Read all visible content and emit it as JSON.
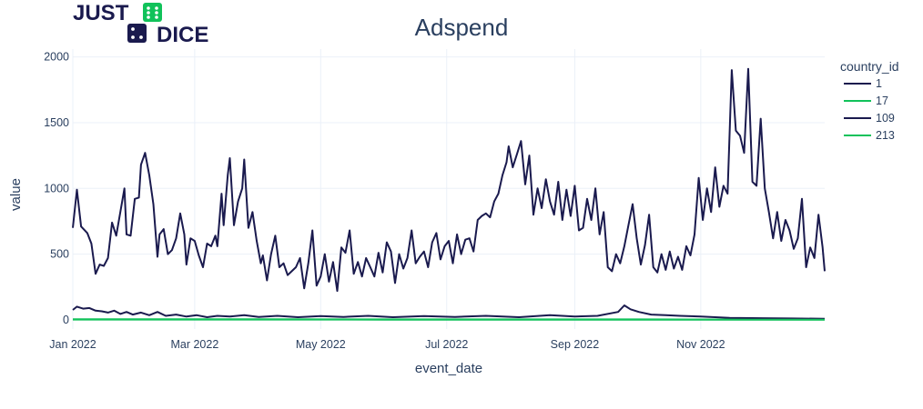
{
  "logo": {
    "line1": "JUST",
    "line2": "DICE",
    "colors": {
      "navy": "#1a1a4e",
      "green": "#11c25a"
    }
  },
  "chart_data": {
    "type": "line",
    "title": "Adspend",
    "xlabel": "event_date",
    "ylabel": "value",
    "x_range": [
      "2022-01-01",
      "2022-12-31"
    ],
    "ylim": [
      -70,
      2060
    ],
    "yticks": [
      0,
      500,
      1000,
      1500,
      2000
    ],
    "xticks": [
      {
        "date": "2022-01-01",
        "label": "Jan 2022"
      },
      {
        "date": "2022-03-01",
        "label": "Mar 2022"
      },
      {
        "date": "2022-05-01",
        "label": "May 2022"
      },
      {
        "date": "2022-07-01",
        "label": "Jul 2022"
      },
      {
        "date": "2022-09-01",
        "label": "Sep 2022"
      },
      {
        "date": "2022-11-01",
        "label": "Nov 2022"
      }
    ],
    "grid": true,
    "legend": {
      "title": "country_id",
      "placement": "top-right"
    },
    "series": [
      {
        "name": "1",
        "color": "#1a1a4e",
        "points": [
          [
            "2022-01-01",
            700
          ],
          [
            "2022-01-03",
            990
          ],
          [
            "2022-01-05",
            710
          ],
          [
            "2022-01-08",
            660
          ],
          [
            "2022-01-10",
            580
          ],
          [
            "2022-01-12",
            350
          ],
          [
            "2022-01-14",
            420
          ],
          [
            "2022-01-16",
            410
          ],
          [
            "2022-01-18",
            470
          ],
          [
            "2022-01-20",
            740
          ],
          [
            "2022-01-22",
            640
          ],
          [
            "2022-01-24",
            820
          ],
          [
            "2022-01-26",
            1000
          ],
          [
            "2022-01-27",
            650
          ],
          [
            "2022-01-29",
            640
          ],
          [
            "2022-01-31",
            920
          ],
          [
            "2022-02-02",
            930
          ],
          [
            "2022-02-03",
            1180
          ],
          [
            "2022-02-05",
            1270
          ],
          [
            "2022-02-07",
            1100
          ],
          [
            "2022-02-09",
            880
          ],
          [
            "2022-02-11",
            480
          ],
          [
            "2022-02-12",
            650
          ],
          [
            "2022-02-14",
            690
          ],
          [
            "2022-02-16",
            500
          ],
          [
            "2022-02-18",
            530
          ],
          [
            "2022-02-20",
            620
          ],
          [
            "2022-02-22",
            810
          ],
          [
            "2022-02-24",
            650
          ],
          [
            "2022-02-25",
            420
          ],
          [
            "2022-02-27",
            620
          ],
          [
            "2022-03-01",
            600
          ],
          [
            "2022-03-03",
            490
          ],
          [
            "2022-03-05",
            400
          ],
          [
            "2022-03-07",
            580
          ],
          [
            "2022-03-09",
            560
          ],
          [
            "2022-03-11",
            640
          ],
          [
            "2022-03-12",
            560
          ],
          [
            "2022-03-14",
            960
          ],
          [
            "2022-03-15",
            720
          ],
          [
            "2022-03-17",
            1100
          ],
          [
            "2022-03-18",
            1230
          ],
          [
            "2022-03-20",
            720
          ],
          [
            "2022-03-22",
            900
          ],
          [
            "2022-03-24",
            1000
          ],
          [
            "2022-03-25",
            1220
          ],
          [
            "2022-03-27",
            700
          ],
          [
            "2022-03-29",
            820
          ],
          [
            "2022-03-31",
            600
          ],
          [
            "2022-04-02",
            430
          ],
          [
            "2022-04-03",
            490
          ],
          [
            "2022-04-05",
            300
          ],
          [
            "2022-04-07",
            500
          ],
          [
            "2022-04-09",
            640
          ],
          [
            "2022-04-11",
            400
          ],
          [
            "2022-04-13",
            430
          ],
          [
            "2022-04-15",
            340
          ],
          [
            "2022-04-17",
            370
          ],
          [
            "2022-04-19",
            400
          ],
          [
            "2022-04-21",
            470
          ],
          [
            "2022-04-23",
            240
          ],
          [
            "2022-04-25",
            430
          ],
          [
            "2022-04-27",
            680
          ],
          [
            "2022-04-29",
            260
          ],
          [
            "2022-05-01",
            330
          ],
          [
            "2022-05-03",
            500
          ],
          [
            "2022-05-05",
            290
          ],
          [
            "2022-05-07",
            440
          ],
          [
            "2022-05-09",
            220
          ],
          [
            "2022-05-11",
            550
          ],
          [
            "2022-05-13",
            510
          ],
          [
            "2022-05-15",
            680
          ],
          [
            "2022-05-17",
            350
          ],
          [
            "2022-05-19",
            440
          ],
          [
            "2022-05-21",
            330
          ],
          [
            "2022-05-23",
            470
          ],
          [
            "2022-05-25",
            400
          ],
          [
            "2022-05-27",
            330
          ],
          [
            "2022-05-29",
            510
          ],
          [
            "2022-05-31",
            360
          ],
          [
            "2022-06-02",
            590
          ],
          [
            "2022-06-04",
            520
          ],
          [
            "2022-06-06",
            280
          ],
          [
            "2022-06-08",
            500
          ],
          [
            "2022-06-10",
            390
          ],
          [
            "2022-06-12",
            470
          ],
          [
            "2022-06-14",
            680
          ],
          [
            "2022-06-16",
            430
          ],
          [
            "2022-06-18",
            480
          ],
          [
            "2022-06-20",
            520
          ],
          [
            "2022-06-22",
            400
          ],
          [
            "2022-06-24",
            590
          ],
          [
            "2022-06-26",
            660
          ],
          [
            "2022-06-28",
            460
          ],
          [
            "2022-06-30",
            560
          ],
          [
            "2022-07-02",
            600
          ],
          [
            "2022-07-04",
            430
          ],
          [
            "2022-07-06",
            650
          ],
          [
            "2022-07-08",
            500
          ],
          [
            "2022-07-10",
            610
          ],
          [
            "2022-07-12",
            620
          ],
          [
            "2022-07-14",
            520
          ],
          [
            "2022-07-16",
            760
          ],
          [
            "2022-07-18",
            790
          ],
          [
            "2022-07-20",
            810
          ],
          [
            "2022-07-22",
            780
          ],
          [
            "2022-07-24",
            900
          ],
          [
            "2022-07-26",
            960
          ],
          [
            "2022-07-28",
            1100
          ],
          [
            "2022-07-30",
            1200
          ],
          [
            "2022-07-31",
            1320
          ],
          [
            "2022-08-02",
            1160
          ],
          [
            "2022-08-04",
            1260
          ],
          [
            "2022-08-06",
            1360
          ],
          [
            "2022-08-08",
            1030
          ],
          [
            "2022-08-10",
            1250
          ],
          [
            "2022-08-12",
            800
          ],
          [
            "2022-08-14",
            1000
          ],
          [
            "2022-08-16",
            850
          ],
          [
            "2022-08-18",
            1070
          ],
          [
            "2022-08-20",
            900
          ],
          [
            "2022-08-22",
            800
          ],
          [
            "2022-08-24",
            1050
          ],
          [
            "2022-08-26",
            760
          ],
          [
            "2022-08-28",
            990
          ],
          [
            "2022-08-30",
            790
          ],
          [
            "2022-09-01",
            1020
          ],
          [
            "2022-09-03",
            680
          ],
          [
            "2022-09-05",
            700
          ],
          [
            "2022-09-07",
            920
          ],
          [
            "2022-09-09",
            760
          ],
          [
            "2022-09-11",
            1000
          ],
          [
            "2022-09-13",
            650
          ],
          [
            "2022-09-15",
            820
          ],
          [
            "2022-09-17",
            400
          ],
          [
            "2022-09-19",
            370
          ],
          [
            "2022-09-21",
            500
          ],
          [
            "2022-09-23",
            430
          ],
          [
            "2022-09-25",
            560
          ],
          [
            "2022-09-27",
            720
          ],
          [
            "2022-09-29",
            880
          ],
          [
            "2022-10-01",
            620
          ],
          [
            "2022-10-03",
            420
          ],
          [
            "2022-10-05",
            570
          ],
          [
            "2022-10-07",
            800
          ],
          [
            "2022-10-09",
            400
          ],
          [
            "2022-10-11",
            360
          ],
          [
            "2022-10-13",
            500
          ],
          [
            "2022-10-15",
            380
          ],
          [
            "2022-10-17",
            520
          ],
          [
            "2022-10-19",
            390
          ],
          [
            "2022-10-21",
            480
          ],
          [
            "2022-10-23",
            380
          ],
          [
            "2022-10-25",
            560
          ],
          [
            "2022-10-27",
            490
          ],
          [
            "2022-10-29",
            650
          ],
          [
            "2022-10-31",
            1080
          ],
          [
            "2022-11-02",
            760
          ],
          [
            "2022-11-04",
            1000
          ],
          [
            "2022-11-06",
            820
          ],
          [
            "2022-11-08",
            1160
          ],
          [
            "2022-11-10",
            860
          ],
          [
            "2022-11-12",
            1020
          ],
          [
            "2022-11-14",
            960
          ],
          [
            "2022-11-16",
            1900
          ],
          [
            "2022-11-18",
            1440
          ],
          [
            "2022-11-20",
            1400
          ],
          [
            "2022-11-22",
            1270
          ],
          [
            "2022-11-24",
            1910
          ],
          [
            "2022-11-26",
            1050
          ],
          [
            "2022-11-28",
            1020
          ],
          [
            "2022-11-30",
            1530
          ],
          [
            "2022-12-02",
            1000
          ],
          [
            "2022-12-04",
            820
          ],
          [
            "2022-12-06",
            620
          ],
          [
            "2022-12-08",
            820
          ],
          [
            "2022-12-10",
            600
          ],
          [
            "2022-12-12",
            760
          ],
          [
            "2022-12-14",
            680
          ],
          [
            "2022-12-16",
            540
          ],
          [
            "2022-12-18",
            620
          ],
          [
            "2022-12-20",
            920
          ],
          [
            "2022-12-22",
            400
          ],
          [
            "2022-12-24",
            550
          ],
          [
            "2022-12-26",
            470
          ],
          [
            "2022-12-28",
            800
          ],
          [
            "2022-12-30",
            550
          ],
          [
            "2022-12-31",
            370
          ]
        ]
      },
      {
        "name": "17",
        "color": "#11c25a",
        "points": [
          [
            "2022-01-01",
            5
          ],
          [
            "2022-02-15",
            4
          ],
          [
            "2022-04-01",
            4
          ],
          [
            "2022-06-01",
            3
          ],
          [
            "2022-08-01",
            3
          ],
          [
            "2022-10-01",
            3
          ],
          [
            "2022-12-31",
            2
          ]
        ]
      },
      {
        "name": "109",
        "color": "#1a1a4e",
        "points": [
          [
            "2022-01-01",
            75
          ],
          [
            "2022-01-03",
            100
          ],
          [
            "2022-01-06",
            85
          ],
          [
            "2022-01-09",
            90
          ],
          [
            "2022-01-12",
            70
          ],
          [
            "2022-01-15",
            65
          ],
          [
            "2022-01-18",
            55
          ],
          [
            "2022-01-21",
            70
          ],
          [
            "2022-01-24",
            45
          ],
          [
            "2022-01-27",
            60
          ],
          [
            "2022-01-30",
            40
          ],
          [
            "2022-02-03",
            55
          ],
          [
            "2022-02-07",
            35
          ],
          [
            "2022-02-11",
            60
          ],
          [
            "2022-02-15",
            30
          ],
          [
            "2022-02-20",
            40
          ],
          [
            "2022-02-25",
            25
          ],
          [
            "2022-03-02",
            35
          ],
          [
            "2022-03-07",
            20
          ],
          [
            "2022-03-12",
            30
          ],
          [
            "2022-03-18",
            25
          ],
          [
            "2022-03-25",
            35
          ],
          [
            "2022-04-01",
            22
          ],
          [
            "2022-04-10",
            30
          ],
          [
            "2022-04-20",
            20
          ],
          [
            "2022-05-01",
            28
          ],
          [
            "2022-05-12",
            22
          ],
          [
            "2022-05-24",
            30
          ],
          [
            "2022-06-05",
            20
          ],
          [
            "2022-06-20",
            28
          ],
          [
            "2022-07-05",
            22
          ],
          [
            "2022-07-20",
            30
          ],
          [
            "2022-08-05",
            20
          ],
          [
            "2022-08-20",
            35
          ],
          [
            "2022-09-01",
            25
          ],
          [
            "2022-09-12",
            30
          ],
          [
            "2022-09-22",
            60
          ],
          [
            "2022-09-25",
            110
          ],
          [
            "2022-09-28",
            80
          ],
          [
            "2022-10-02",
            60
          ],
          [
            "2022-10-08",
            40
          ],
          [
            "2022-10-15",
            35
          ],
          [
            "2022-10-22",
            30
          ],
          [
            "2022-11-01",
            25
          ],
          [
            "2022-11-15",
            15
          ],
          [
            "2022-12-01",
            12
          ],
          [
            "2022-12-15",
            10
          ],
          [
            "2022-12-31",
            8
          ]
        ]
      },
      {
        "name": "213",
        "color": "#11c25a",
        "points": [
          [
            "2022-01-01",
            2
          ],
          [
            "2022-03-01",
            2
          ],
          [
            "2022-06-01",
            1
          ],
          [
            "2022-09-01",
            1
          ],
          [
            "2022-12-31",
            1
          ]
        ]
      }
    ]
  }
}
